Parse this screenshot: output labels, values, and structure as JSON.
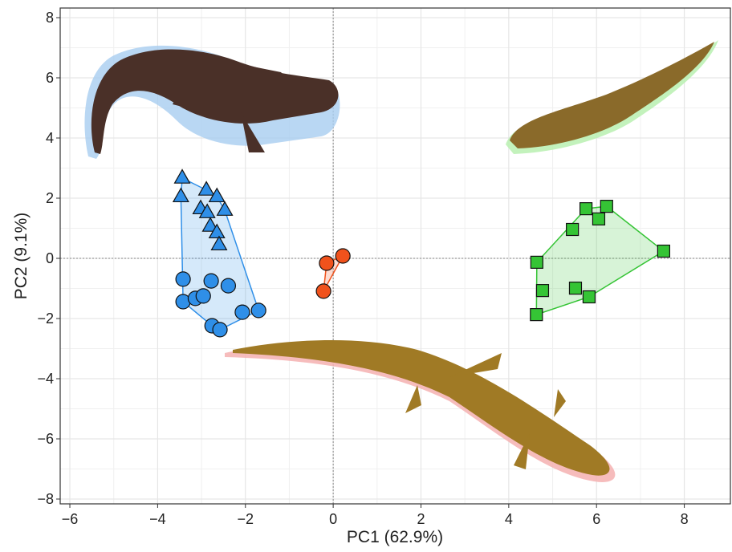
{
  "chart_data": {
    "type": "scatter",
    "x_label": "PC1 (62.9%)",
    "y_label": "PC2 (9.1%)",
    "xlim": [
      -6.22,
      9.05
    ],
    "ylim": [
      -8.16,
      8.32
    ],
    "xticks": [
      {
        "value": -6,
        "label": "−6"
      },
      {
        "value": -4,
        "label": "−4"
      },
      {
        "value": -2,
        "label": "−2"
      },
      0,
      2,
      4,
      6,
      8
    ],
    "yticks": [
      {
        "value": -8,
        "label": "−8"
      },
      {
        "value": -6,
        "label": "−6"
      },
      {
        "value": -4,
        "label": "−4"
      },
      {
        "value": -2,
        "label": "−2"
      },
      0,
      2,
      4,
      6,
      8
    ],
    "grid": true,
    "zero_lines": true,
    "convex_hulls": true,
    "series": [
      {
        "color": "#2f8fe8",
        "marker": "triangle",
        "x": [
          -3.44,
          -3.47,
          -2.89,
          -2.65,
          -3.02,
          -2.87,
          -2.47,
          -2.8,
          -2.65,
          -2.6
        ],
        "values": [
          2.67,
          2.05,
          2.27,
          2.05,
          1.65,
          1.52,
          1.6,
          1.07,
          0.85,
          0.45
        ]
      },
      {
        "color": "#2f8fe8",
        "marker": "circle",
        "x": [
          -3.42,
          -2.78,
          -2.39,
          -3.42,
          -3.14,
          -2.96,
          -2.07,
          -1.7,
          -2.76,
          -2.58
        ],
        "values": [
          -0.69,
          -0.75,
          -0.91,
          -1.44,
          -1.33,
          -1.25,
          -1.79,
          -1.73,
          -2.24,
          -2.37
        ]
      },
      {
        "color": "#f0521c",
        "marker": "circle",
        "x": [
          -0.15,
          0.22,
          -0.22
        ],
        "values": [
          -0.16,
          0.08,
          -1.09
        ]
      },
      {
        "color": "#35c435",
        "marker": "square",
        "x": [
          4.64,
          4.77,
          4.63,
          5.45,
          5.76,
          6.05,
          6.23,
          7.53,
          5.52,
          5.83
        ],
        "values": [
          -0.13,
          -1.07,
          -1.87,
          0.96,
          1.65,
          1.31,
          1.73,
          0.24,
          -0.99,
          -1.28
        ]
      }
    ]
  }
}
